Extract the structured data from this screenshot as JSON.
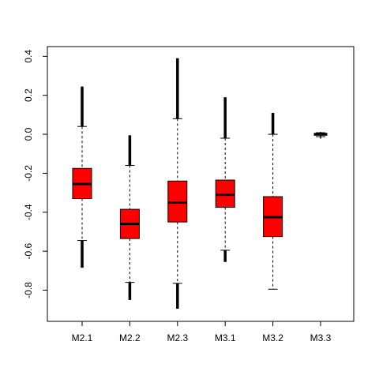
{
  "chart_data": {
    "type": "boxplot",
    "categories": [
      "M2.1",
      "M2.2",
      "M2.3",
      "M3.1",
      "M3.2",
      "M3.3"
    ],
    "box_color": "#ff0000",
    "ylim": [
      -0.96,
      0.45
    ],
    "yticks": [
      0.4,
      0.2,
      0.0,
      -0.2,
      -0.4,
      -0.6,
      -0.8
    ],
    "ytick_labels": [
      "0.4",
      "0.2",
      "0.0",
      "-0.2",
      "-0.4",
      "-0.6",
      "-0.8"
    ],
    "boxes": [
      {
        "name": "M2.1",
        "q1": -0.33,
        "median": -0.255,
        "q3": -0.175,
        "whisker_low": -0.545,
        "whisker_high": 0.04,
        "outlier_low": -0.685,
        "outlier_high": 0.245
      },
      {
        "name": "M2.2",
        "q1": -0.535,
        "median": -0.46,
        "q3": -0.385,
        "whisker_low": -0.76,
        "whisker_high": -0.16,
        "outlier_low": -0.85,
        "outlier_high": -0.005
      },
      {
        "name": "M2.3",
        "q1": -0.45,
        "median": -0.35,
        "q3": -0.24,
        "whisker_low": -0.765,
        "whisker_high": 0.08,
        "outlier_low": -0.895,
        "outlier_high": 0.39
      },
      {
        "name": "M3.1",
        "q1": -0.375,
        "median": -0.31,
        "q3": -0.235,
        "whisker_low": -0.595,
        "whisker_high": -0.02,
        "outlier_low": -0.655,
        "outlier_high": 0.19
      },
      {
        "name": "M3.2",
        "q1": -0.525,
        "median": -0.425,
        "q3": -0.32,
        "whisker_low": -0.795,
        "whisker_high": 0.0,
        "outlier_low": null,
        "outlier_high": 0.11
      },
      {
        "name": "M3.3",
        "q1": -0.005,
        "median": 0.0,
        "q3": 0.005,
        "whisker_low": -0.012,
        "whisker_high": 0.008,
        "outlier_low": -0.022,
        "outlier_high": 0.012
      }
    ],
    "title": "",
    "xlabel": "",
    "ylabel": "",
    "grid": false
  }
}
